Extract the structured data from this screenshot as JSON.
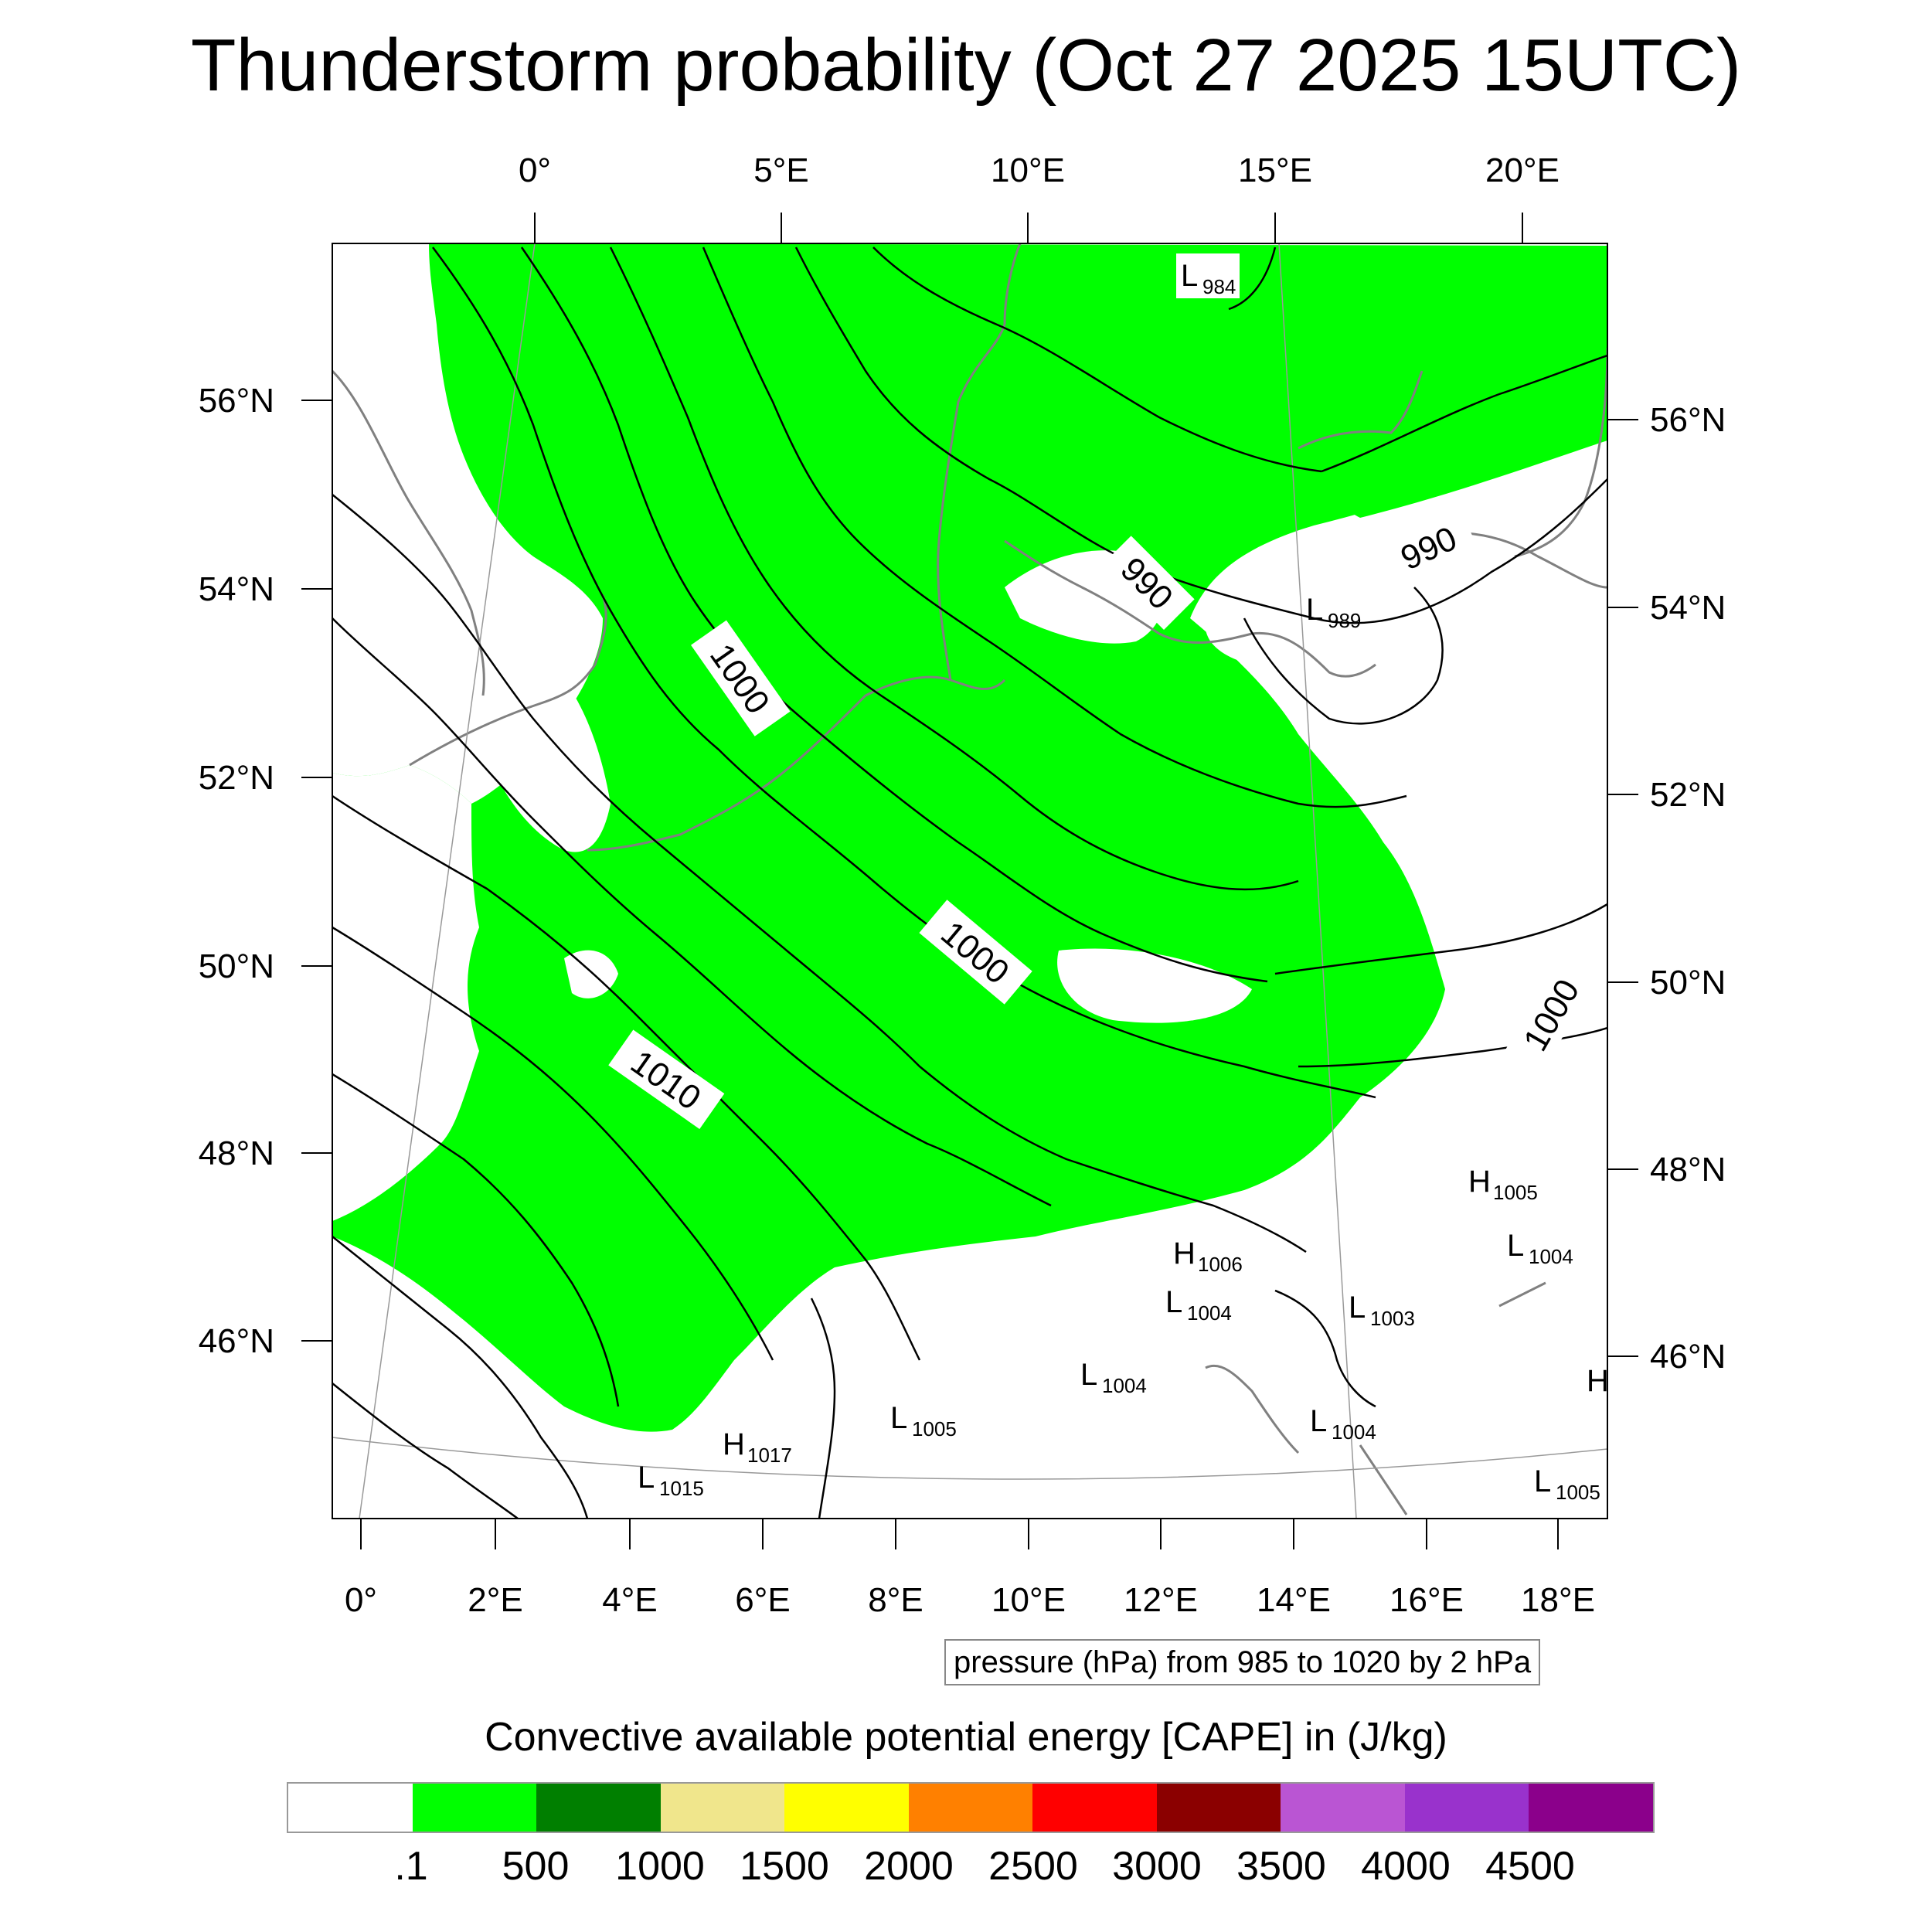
{
  "title": "Thunderstorm probability (Oct 27 2025 15UTC)",
  "map": {
    "projection": "lambert-conformal",
    "land_color": "#ffffff",
    "cape_fill_color": "#00ff00",
    "coastline_color": "#808080",
    "contour_color": "#000000",
    "top_lon_labels": [
      "0°",
      "5°E",
      "10°E",
      "15°E",
      "20°E"
    ],
    "bottom_lon_labels": [
      "0°",
      "2°E",
      "4°E",
      "6°E",
      "8°E",
      "10°E",
      "12°E",
      "14°E",
      "16°E",
      "18°E"
    ],
    "left_lat_labels": [
      "56°N",
      "54°N",
      "52°N",
      "50°N",
      "48°N",
      "46°N"
    ],
    "right_lat_labels": [
      "56°N",
      "54°N",
      "52°N",
      "50°N",
      "48°N",
      "46°N"
    ],
    "contour_labels": [
      {
        "text": "990"
      },
      {
        "text": "990"
      },
      {
        "text": "1000"
      },
      {
        "text": "1000"
      },
      {
        "text": "1000"
      },
      {
        "text": "1010"
      }
    ],
    "pressure_centers": [
      {
        "letter": "L",
        "value": "984"
      },
      {
        "letter": "L",
        "value": "989"
      },
      {
        "letter": "H",
        "value": "1005"
      },
      {
        "letter": "L",
        "value": "1004"
      },
      {
        "letter": "H",
        "value": "1006"
      },
      {
        "letter": "L",
        "value": "1004"
      },
      {
        "letter": "L",
        "value": "1003"
      },
      {
        "letter": "L",
        "value": "1004"
      },
      {
        "letter": "L",
        "value": "1005"
      },
      {
        "letter": "H",
        "value": "1017"
      },
      {
        "letter": "L",
        "value": "1015"
      },
      {
        "letter": "L",
        "value": "1004"
      },
      {
        "letter": "L",
        "value": "1005"
      },
      {
        "letter": "H",
        "value": ""
      }
    ]
  },
  "info_box": "pressure (hPa) from 985 to 1020 by 2 hPa",
  "colorbar": {
    "title": "Convective available potential energy [CAPE] in (J/kg)",
    "colors": [
      "#ffffff",
      "#00ff00",
      "#007f00",
      "#f0e68c",
      "#ffff00",
      "#ff8000",
      "#ff0000",
      "#8b0000",
      "#ba55d3",
      "#9932cc",
      "#8b008b"
    ],
    "labels": [
      ".1",
      "500",
      "1000",
      "1500",
      "2000",
      "2500",
      "3000",
      "3500",
      "4000",
      "4500"
    ]
  }
}
